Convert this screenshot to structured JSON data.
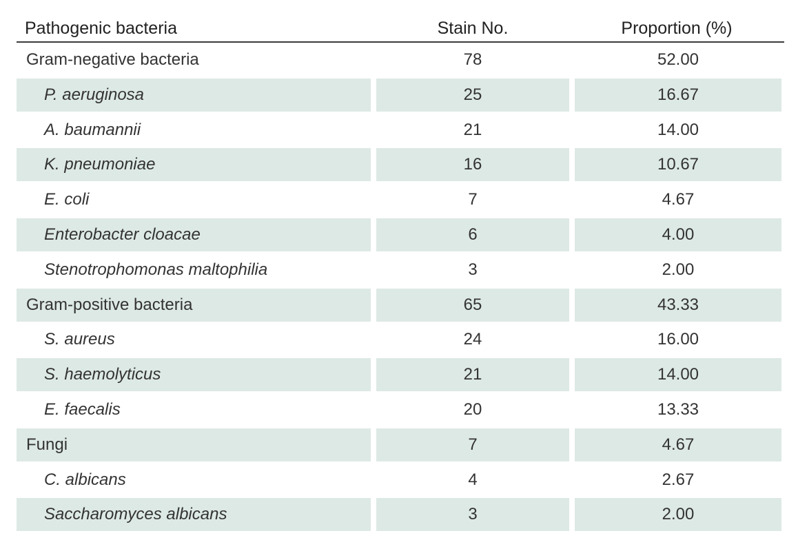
{
  "table": {
    "headers": {
      "name": "Pathogenic bacteria",
      "stain": "Stain No.",
      "proportion": "Proportion (%)"
    },
    "rows": [
      {
        "name": "Gram-negative bacteria",
        "stain": "78",
        "proportion": "52.00",
        "level": "group",
        "shaded": false
      },
      {
        "name": "P. aeruginosa",
        "stain": "25",
        "proportion": "16.67",
        "level": "species",
        "shaded": true
      },
      {
        "name": "A. baumannii",
        "stain": "21",
        "proportion": "14.00",
        "level": "species",
        "shaded": false
      },
      {
        "name": "K. pneumoniae",
        "stain": "16",
        "proportion": "10.67",
        "level": "species",
        "shaded": true
      },
      {
        "name": "E. coli",
        "stain": "7",
        "proportion": "4.67",
        "level": "species",
        "shaded": false
      },
      {
        "name": "Enterobacter cloacae",
        "stain": "6",
        "proportion": "4.00",
        "level": "species",
        "shaded": true
      },
      {
        "name": "Stenotrophomonas maltophilia",
        "stain": "3",
        "proportion": "2.00",
        "level": "species",
        "shaded": false
      },
      {
        "name": "Gram-positive bacteria",
        "stain": "65",
        "proportion": "43.33",
        "level": "group",
        "shaded": true
      },
      {
        "name": "S. aureus",
        "stain": "24",
        "proportion": "16.00",
        "level": "species",
        "shaded": false
      },
      {
        "name": "S. haemolyticus",
        "stain": "21",
        "proportion": "14.00",
        "level": "species",
        "shaded": true
      },
      {
        "name": "E. faecalis",
        "stain": "20",
        "proportion": "13.33",
        "level": "species",
        "shaded": false
      },
      {
        "name": "Fungi",
        "stain": "7",
        "proportion": "4.67",
        "level": "group",
        "shaded": true
      },
      {
        "name": "C. albicans",
        "stain": "4",
        "proportion": "2.67",
        "level": "species",
        "shaded": false
      },
      {
        "name": "Saccharomyces albicans",
        "stain": "3",
        "proportion": "2.00",
        "level": "species",
        "shaded": true
      }
    ]
  },
  "colors": {
    "row_shade": "#dde9e4",
    "header_rule": "#3a3a3a",
    "text": "#333333"
  }
}
